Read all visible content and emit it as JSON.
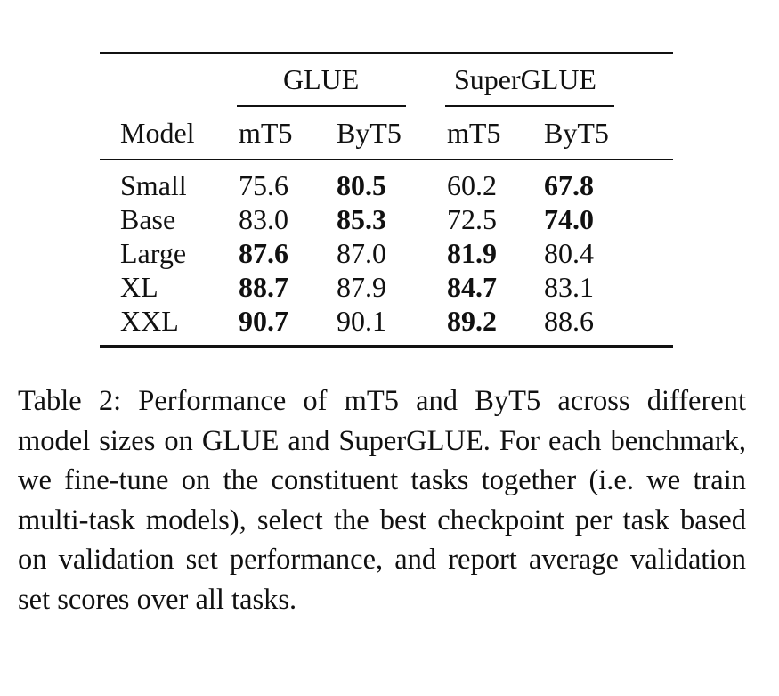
{
  "table": {
    "groups": [
      "GLUE",
      "SuperGLUE"
    ],
    "model_header": "Model",
    "column_headers": [
      "mT5",
      "ByT5",
      "mT5",
      "ByT5"
    ],
    "rows": [
      {
        "model": "Small",
        "values": [
          "75.6",
          "80.5",
          "60.2",
          "67.8"
        ],
        "bold": [
          false,
          true,
          false,
          true
        ]
      },
      {
        "model": "Base",
        "values": [
          "83.0",
          "85.3",
          "72.5",
          "74.0"
        ],
        "bold": [
          false,
          true,
          false,
          true
        ]
      },
      {
        "model": "Large",
        "values": [
          "87.6",
          "87.0",
          "81.9",
          "80.4"
        ],
        "bold": [
          true,
          false,
          true,
          false
        ]
      },
      {
        "model": "XL",
        "values": [
          "88.7",
          "87.9",
          "84.7",
          "83.1"
        ],
        "bold": [
          true,
          false,
          true,
          false
        ]
      },
      {
        "model": "XXL",
        "values": [
          "90.7",
          "90.1",
          "89.2",
          "88.6"
        ],
        "bold": [
          true,
          false,
          true,
          false
        ]
      }
    ]
  },
  "caption": "Table 2: Performance of mT5 and ByT5 across dif­ferent model sizes on GLUE and SuperGLUE. For each benchmark, we fine-tune on the constituent tasks together (i.e. we train multi-task models), select the best checkpoint per task based on validation set perfor­mance, and report average validation set scores over all tasks."
}
